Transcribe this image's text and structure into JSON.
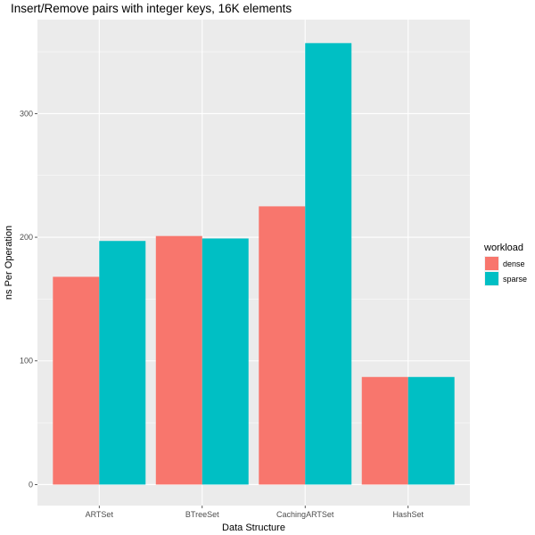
{
  "chart_data": {
    "type": "bar",
    "title": "Insert/Remove pairs with integer keys, 16K elements",
    "xlabel": "Data Structure",
    "ylabel": "ns Per Operation",
    "categories": [
      "ARTSet",
      "BTreeSet",
      "CachingARTSet",
      "HashSet"
    ],
    "series": [
      {
        "name": "dense",
        "color": "#F8766D",
        "values": [
          168,
          201,
          225,
          87
        ]
      },
      {
        "name": "sparse",
        "color": "#00BFC4",
        "values": [
          197,
          199,
          357,
          87
        ]
      }
    ],
    "ylim": [
      -17,
      376
    ],
    "yticks": [
      0,
      100,
      200,
      300
    ],
    "grid": true,
    "legend": {
      "title": "workload",
      "position": "right"
    }
  }
}
